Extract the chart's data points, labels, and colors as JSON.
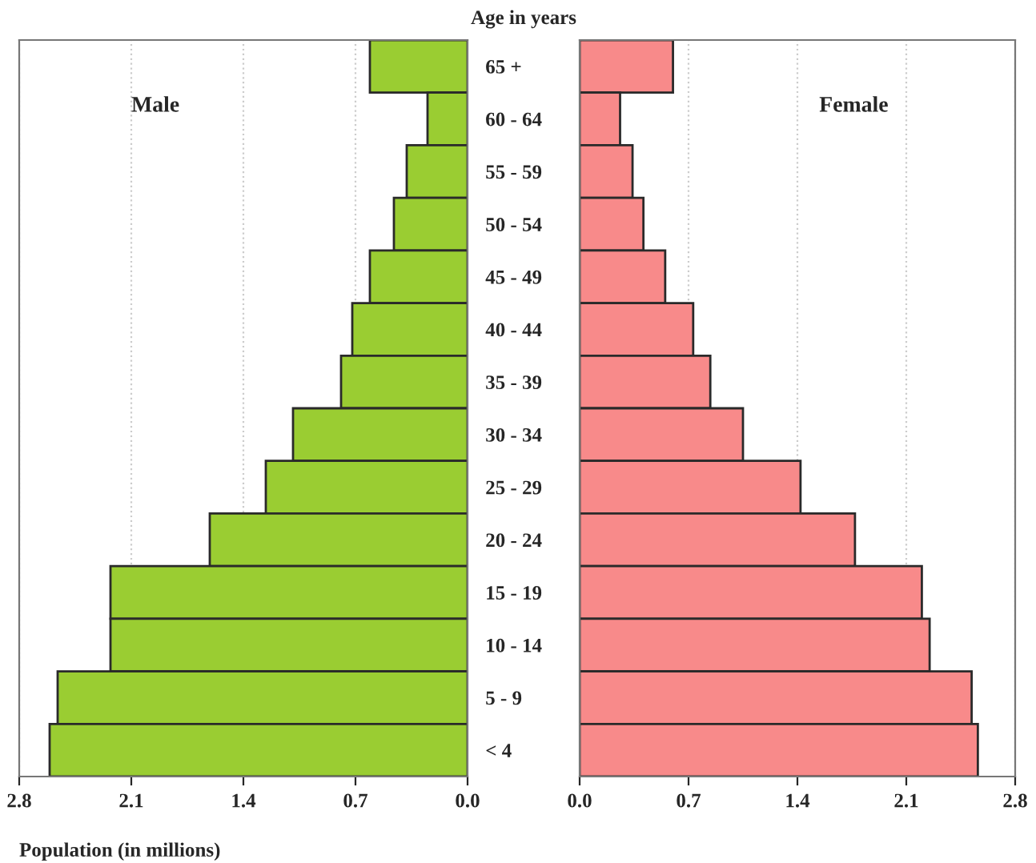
{
  "chart_data": [
    {
      "type": "bar",
      "orientation": "horizontal",
      "title": "Age in years",
      "xlabel": "Population (in millions)",
      "categories": [
        "65 +",
        "60 - 64",
        "55 - 59",
        "50 - 54",
        "45 - 49",
        "40 - 44",
        "35 - 39",
        "30 - 34",
        "25 - 29",
        "20 - 24",
        "15 - 19",
        "10 - 14",
        "5 - 9",
        "< 4"
      ],
      "series": [
        {
          "name": "Male",
          "color": "#9acd32",
          "values": [
            0.61,
            0.25,
            0.38,
            0.46,
            0.61,
            0.72,
            0.79,
            1.09,
            1.26,
            1.61,
            2.23,
            2.23,
            2.56,
            2.61
          ]
        }
      ],
      "xlim": [
        2.8,
        0
      ],
      "xticks": [
        {
          "value": 2.8,
          "label": "2.8"
        },
        {
          "value": 2.1,
          "label": "2.1"
        },
        {
          "value": 1.4,
          "label": "1.4"
        },
        {
          "value": 0.7,
          "label": "0.7"
        },
        {
          "value": 0,
          "label": "0.0"
        }
      ],
      "grid": "x"
    },
    {
      "type": "bar",
      "orientation": "horizontal",
      "series": [
        {
          "name": "Female",
          "color": "#f88a8a",
          "values": [
            0.6,
            0.26,
            0.34,
            0.41,
            0.55,
            0.73,
            0.84,
            1.05,
            1.42,
            1.77,
            2.2,
            2.25,
            2.52,
            2.56
          ]
        }
      ],
      "xlim": [
        0,
        2.8
      ],
      "xticks": [
        {
          "value": 0,
          "label": "0.0"
        },
        {
          "value": 0.7,
          "label": "0.7"
        },
        {
          "value": 1.4,
          "label": "1.4"
        },
        {
          "value": 2.1,
          "label": "2.1"
        },
        {
          "value": 2.8,
          "label": "2.8"
        }
      ],
      "grid": "x",
      "tick_labels": "x"
    }
  ]
}
